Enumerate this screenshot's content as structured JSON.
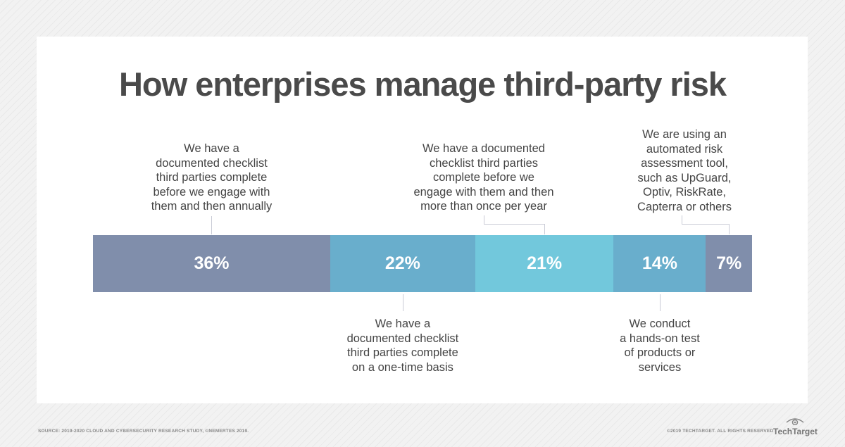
{
  "chart_data": {
    "type": "bar",
    "subtype": "stacked-horizontal-100",
    "title": "How enterprises manage third-party risk",
    "categories": [
      "We have a documented checklist third parties complete before we engage with them and then annually",
      "We have a documented checklist third parties complete on a one-time basis",
      "We have a documented checklist third parties complete before we engage with them and then more than once per year",
      "We conduct a hands-on test of products or services",
      "We are using an automated risk assessment tool, such as UpGuard, Optiv, RiskRate, Capterra or others"
    ],
    "label_lines": [
      [
        "We have a",
        "documented checklist",
        "third parties complete",
        "before we engage with",
        "them and then annually"
      ],
      [
        "We have a",
        "documented checklist",
        "third parties complete",
        "on a one-time basis"
      ],
      [
        "We have a documented",
        "checklist third parties",
        "complete before we",
        "engage with them and then",
        "more than once per year"
      ],
      [
        "We conduct",
        "a hands-on test",
        "of products or",
        "services"
      ],
      [
        "We are using an",
        "automated risk",
        "assessment tool,",
        "such as UpGuard,",
        "Optiv, RiskRate,",
        "Capterra or others"
      ]
    ],
    "values": [
      36,
      22,
      21,
      14,
      7
    ],
    "data_labels": [
      "36%",
      "22%",
      "21%",
      "14%",
      "7%"
    ],
    "colors": [
      "#808eab",
      "#69aecc",
      "#72c8dc",
      "#69aecc",
      "#808eab"
    ],
    "unit": "%",
    "xlim": [
      0,
      100
    ]
  },
  "footer": {
    "source": "SOURCE: 2019-2020 CLOUD AND CYBERSECURITY RESEARCH STUDY, ©NEMERTES 2019.",
    "copyright": "©2019 TECHTARGET. ALL RIGHTS RESERVED",
    "logo": "TechTarget"
  }
}
